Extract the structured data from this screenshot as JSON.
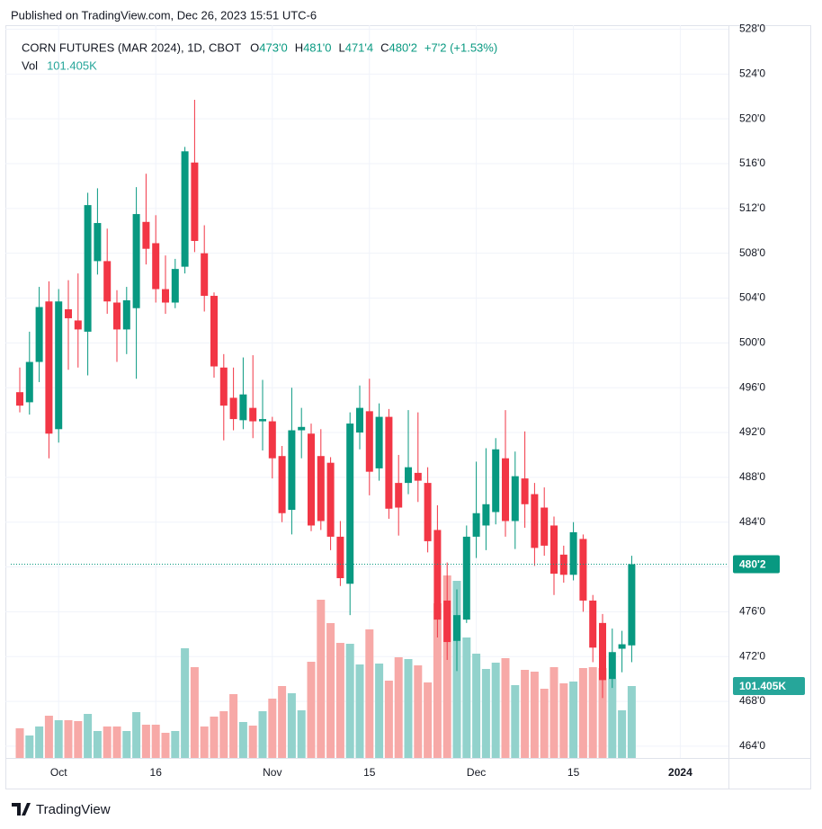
{
  "published": "Published on TradingView.com, Dec 26, 2023 15:51 UTC-6",
  "footer": "TradingView",
  "chart_data": {
    "type": "candlestick",
    "symbol": "CORN FUTURES (MAR 2024), 1D, CBOT",
    "ohlc_legend": [
      {
        "key": "O",
        "value": "473'0"
      },
      {
        "key": "H",
        "value": "481'0"
      },
      {
        "key": "L",
        "value": "471'4"
      },
      {
        "key": "C",
        "value": "480'2"
      }
    ],
    "change": "+7'2 (+1.53%)",
    "volume_title": "Vol",
    "volume_label": "101.405K",
    "last_price_label": "480'2",
    "up_color": "#089981",
    "down_color": "#f23645",
    "volume_up_color": "#92d2cc",
    "volume_down_color": "#f7a9a7",
    "grid": true,
    "categories": [
      "2023-09-26",
      "2023-09-27",
      "2023-09-28",
      "2023-09-29",
      "2023-10-02",
      "2023-10-03",
      "2023-10-04",
      "2023-10-05",
      "2023-10-06",
      "2023-10-09",
      "2023-10-10",
      "2023-10-11",
      "2023-10-12",
      "2023-10-13",
      "2023-10-16",
      "2023-10-17",
      "2023-10-18",
      "2023-10-19",
      "2023-10-20",
      "2023-10-23",
      "2023-10-24",
      "2023-10-25",
      "2023-10-26",
      "2023-10-27",
      "2023-10-30",
      "2023-10-31",
      "2023-11-01",
      "2023-11-02",
      "2023-11-03",
      "2023-11-06",
      "2023-11-07",
      "2023-11-08",
      "2023-11-09",
      "2023-11-10",
      "2023-11-13",
      "2023-11-14",
      "2023-11-15",
      "2023-11-16",
      "2023-11-17",
      "2023-11-20",
      "2023-11-21",
      "2023-11-22",
      "2023-11-24",
      "2023-11-27",
      "2023-11-28",
      "2023-11-29",
      "2023-11-30",
      "2023-12-01",
      "2023-12-04",
      "2023-12-05",
      "2023-12-06",
      "2023-12-07",
      "2023-12-08",
      "2023-12-11",
      "2023-12-12",
      "2023-12-13",
      "2023-12-14",
      "2023-12-15",
      "2023-12-18",
      "2023-12-19",
      "2023-12-20",
      "2023-12-21",
      "2023-12-22",
      "2023-12-26"
    ],
    "open": [
      495.6,
      494.7,
      498.3,
      503.7,
      492.3,
      503,
      502,
      501,
      507.3,
      507.3,
      503.6,
      501.2,
      503.1,
      510.8,
      508.9,
      504.8,
      503.6,
      506.8,
      516.1,
      508,
      504.2,
      497.8,
      495.1,
      493.1,
      494.2,
      493,
      493,
      489.9,
      485.1,
      492.2,
      491.9,
      489.9,
      489.3,
      482.7,
      478.5,
      492,
      493.9,
      488.8,
      493.4,
      487.5,
      487.5,
      488.4,
      487.5,
      483.3,
      477,
      473.4,
      475.3,
      482.7,
      483.7,
      484.9,
      489.7,
      484.1,
      487.9,
      486.5,
      485.3,
      483.7,
      481.1,
      479.3,
      482.5,
      477,
      475,
      470,
      472.7,
      473
    ],
    "high": [
      497.8,
      501,
      505,
      505.5,
      504.8,
      505.6,
      506.2,
      513.4,
      513.8,
      510.2,
      504.7,
      505,
      513.9,
      515.1,
      511.4,
      507.8,
      507.5,
      517.5,
      521.7,
      510.5,
      504.5,
      499,
      497.8,
      498.7,
      498.9,
      496.7,
      493.4,
      490.8,
      496,
      494.2,
      492.8,
      492.3,
      489.8,
      484.1,
      493.8,
      496.2,
      496.8,
      494.6,
      494.1,
      490,
      494,
      493.8,
      488.9,
      485.5,
      480.4,
      478,
      483.7,
      489.4,
      490.6,
      491.5,
      494,
      490.3,
      492.1,
      487.5,
      487.1,
      484.5,
      481.9,
      484,
      482.9,
      477.5,
      475.8,
      474.5,
      474.3,
      481
    ],
    "low": [
      493.8,
      493.6,
      496.5,
      489.7,
      491.1,
      497.6,
      497.8,
      497.1,
      506.1,
      502.6,
      498.3,
      499,
      496.8,
      507,
      503.6,
      502.6,
      503.1,
      506.2,
      508.1,
      502.8,
      496.9,
      491.3,
      492.2,
      492.3,
      491.5,
      490.4,
      487.9,
      484,
      482.9,
      489.7,
      483.2,
      483.3,
      481.5,
      478.3,
      475.7,
      490.5,
      486.4,
      487.7,
      484.3,
      482.8,
      486.5,
      485.8,
      481.3,
      473.7,
      471.7,
      470.7,
      475,
      480.8,
      481.5,
      483.8,
      482.7,
      481.6,
      483.5,
      480.1,
      481,
      477.5,
      478.6,
      478.8,
      476,
      471.5,
      468.3,
      469.2,
      470.6,
      471.5
    ],
    "close": [
      494.4,
      498.3,
      503.2,
      491.9,
      503.7,
      502.2,
      501.2,
      512.3,
      510.7,
      503.7,
      501.2,
      503.8,
      511.5,
      508.4,
      504.8,
      503.6,
      506.6,
      517.1,
      509.1,
      504.2,
      497.9,
      494.4,
      493.2,
      495.4,
      493,
      493.2,
      489.7,
      484.8,
      492.2,
      492.5,
      483.7,
      484.1,
      482.7,
      479,
      492.8,
      494.2,
      488.5,
      493.4,
      485.2,
      485.3,
      488.9,
      487.7,
      482.3,
      475.3,
      473.3,
      475.7,
      482.7,
      484.8,
      485.6,
      490.5,
      484.1,
      488.1,
      485.6,
      481.7,
      481.9,
      479.4,
      479.3,
      483.1,
      477,
      472.8,
      469.9,
      472.4,
      473.1,
      480.25
    ],
    "volume": [
      41831,
      31690,
      44366,
      59577,
      53239,
      53239,
      51972,
      62112,
      38028,
      44366,
      44366,
      38028,
      64648,
      46901,
      46901,
      35493,
      38028,
      154647,
      128028,
      44366,
      58310,
      65915,
      90000,
      50704,
      45634,
      65915,
      83662,
      101408,
      91267,
      67183,
      135633,
      223098,
      190140,
      162253,
      160985,
      131830,
      181267,
      133098,
      109014,
      141971,
      139436,
      130563,
      106478,
      218027,
      257323,
      249717,
      169858,
      147042,
      125492,
      134366,
      140704,
      102676,
      124225,
      121690,
      97605,
      128028,
      105211,
      107746,
      126760,
      128028,
      126760,
      111549,
      67183,
      101405
    ],
    "ylim": [
      462.95,
      528.36
    ],
    "yticks": [
      {
        "value": 464,
        "label": "464'0"
      },
      {
        "value": 468,
        "label": "468'0"
      },
      {
        "value": 472,
        "label": "472'0"
      },
      {
        "value": 476,
        "label": "476'0"
      },
      {
        "value": 480,
        "label": "480'0"
      },
      {
        "value": 484,
        "label": "484'0"
      },
      {
        "value": 488,
        "label": "488'0"
      },
      {
        "value": 492,
        "label": "492'0"
      },
      {
        "value": 496,
        "label": "496'0"
      },
      {
        "value": 500,
        "label": "500'0"
      },
      {
        "value": 504,
        "label": "504'0"
      },
      {
        "value": 508,
        "label": "508'0"
      },
      {
        "value": 512,
        "label": "512'0"
      },
      {
        "value": 516,
        "label": "516'0"
      },
      {
        "value": 520,
        "label": "520'0"
      },
      {
        "value": 524,
        "label": "524'0"
      },
      {
        "value": 528,
        "label": "528'0"
      }
    ],
    "xticks": [
      {
        "value": "2023-10-02",
        "label": "Oct"
      },
      {
        "value": "2023-10-16",
        "label": "16"
      },
      {
        "value": "2023-11-01",
        "label": "Nov"
      },
      {
        "value": "2023-11-15",
        "label": "15"
      },
      {
        "value": "2023-12-01",
        "label": "Dec"
      },
      {
        "value": "2023-12-15",
        "label": "15"
      },
      {
        "value": "2024-01-02",
        "label": "2024"
      }
    ]
  }
}
